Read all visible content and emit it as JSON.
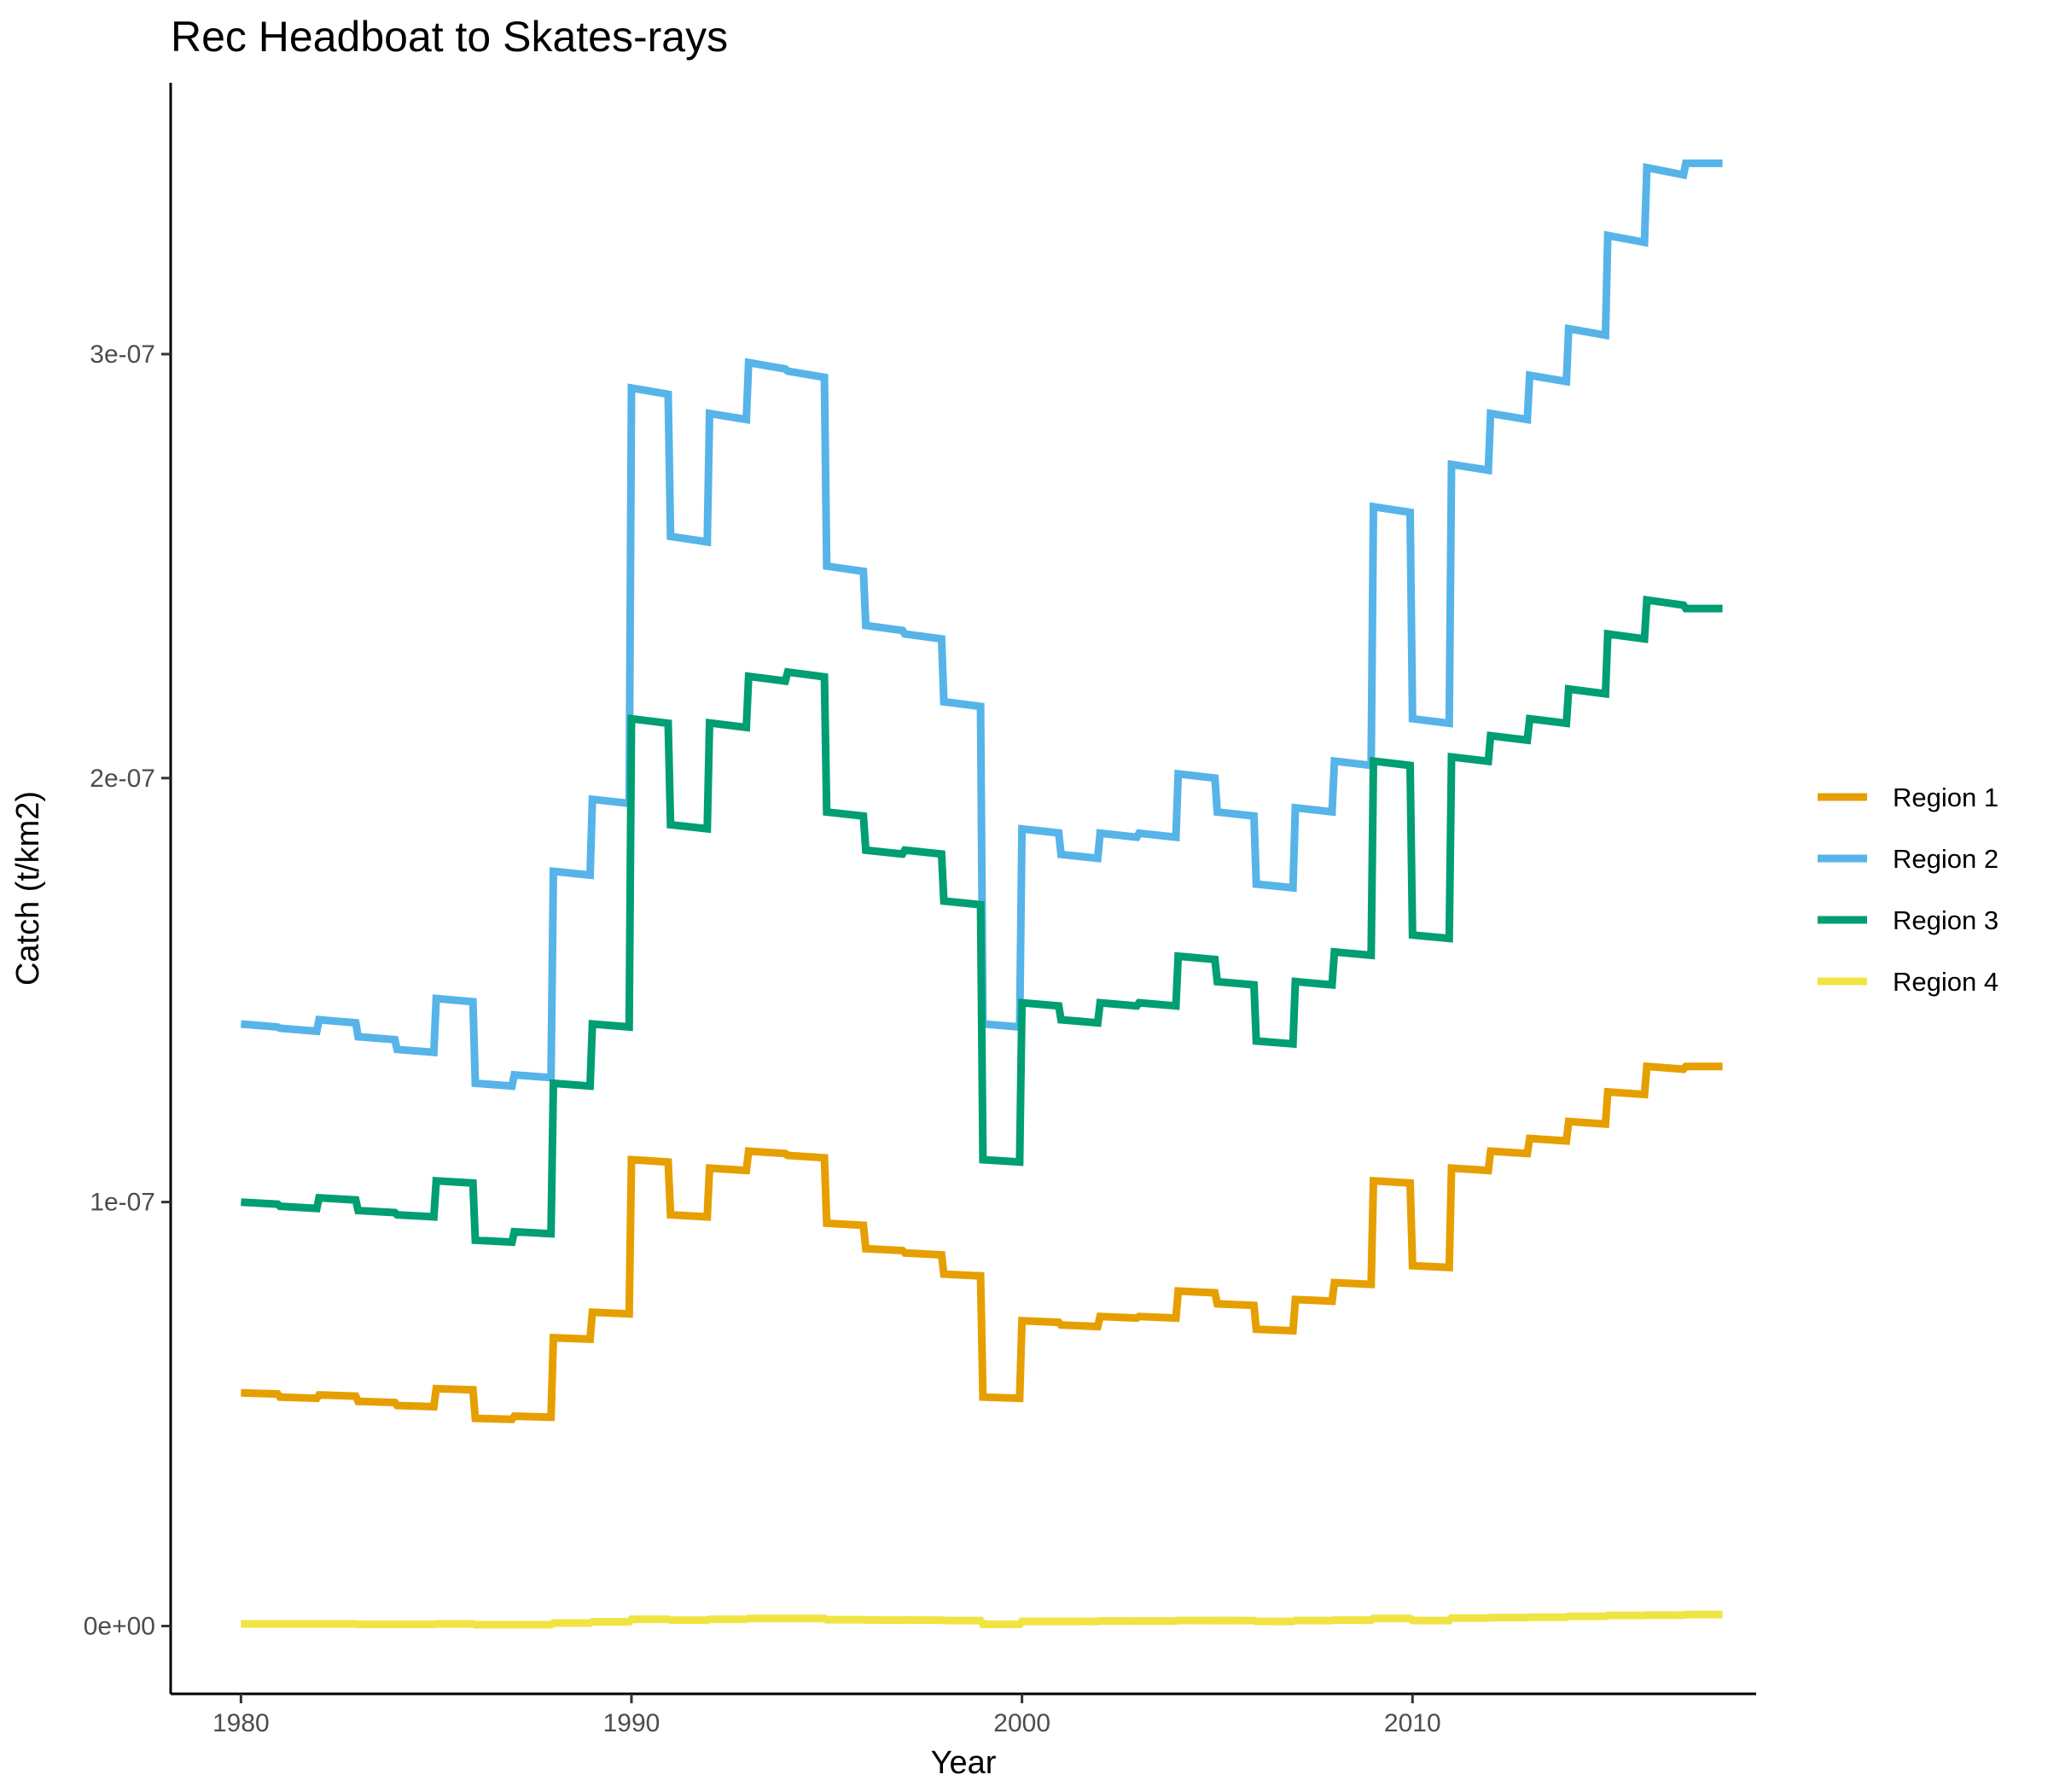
{
  "chart_data": {
    "type": "line",
    "title": "Rec Headboat to Skates-rays",
    "xlabel": "Year",
    "ylabel": "Catch (t/km2)",
    "xlim": [
      1978.2,
      2018.8
    ],
    "ylim": [
      -1.6e-08,
      3.64e-07
    ],
    "xticks": [
      1980,
      1990,
      2000,
      2010
    ],
    "xtick_labels": [
      "1980",
      "1990",
      "2000",
      "2010"
    ],
    "yticks": [
      0,
      1e-07,
      2e-07,
      3e-07
    ],
    "ytick_labels": [
      "0e+00",
      "1e-07",
      "2e-07",
      "3e-07"
    ],
    "grid": false,
    "legend_position": "right",
    "x": [
      1980.0,
      1981.0,
      1982.0,
      1983.0,
      1984.0,
      1985.0,
      1986.0,
      1987.0,
      1988.0,
      1989.0,
      1990.0,
      1991.0,
      1992.0,
      1993.0,
      1994.0,
      1995.0,
      1996.0,
      1997.0,
      1998.0,
      1999.0,
      2000.0,
      2001.0,
      2002.0,
      2003.0,
      2004.0,
      2005.0,
      2006.0,
      2007.0,
      2008.0,
      2009.0,
      2010.0,
      2011.0,
      2012.0,
      2013.0,
      2014.0,
      2015.0,
      2016.0,
      2017.0
    ],
    "series": [
      {
        "name": "Region 1",
        "color": "#E69F00",
        "values": [
          5.5e-08,
          5.4e-08,
          5.45e-08,
          5.3e-08,
          5.2e-08,
          5.6e-08,
          4.9e-08,
          4.95e-08,
          6.8e-08,
          7.4e-08,
          1.1e-07,
          9.7e-08,
          1.08e-07,
          1.12e-07,
          1.11e-07,
          9.5e-08,
          8.9e-08,
          8.8e-08,
          8.3e-08,
          5.4e-08,
          7.2e-08,
          7.1e-08,
          7.3e-08,
          7.3e-08,
          7.9e-08,
          7.6e-08,
          7e-08,
          7.7e-08,
          8.1e-08,
          1.05e-07,
          8.5e-08,
          1.08e-07,
          1.12e-07,
          1.15e-07,
          1.19e-07,
          1.26e-07,
          1.32e-07,
          1.32e-07
        ]
      },
      {
        "name": "Region 2",
        "color": "#56B4E9",
        "values": [
          1.42e-07,
          1.41e-07,
          1.43e-07,
          1.39e-07,
          1.36e-07,
          1.48e-07,
          1.28e-07,
          1.3e-07,
          1.78e-07,
          1.95e-07,
          2.92e-07,
          2.57e-07,
          2.86e-07,
          2.98e-07,
          2.96e-07,
          2.5e-07,
          2.36e-07,
          2.34e-07,
          2.18e-07,
          1.42e-07,
          1.88e-07,
          1.82e-07,
          1.87e-07,
          1.87e-07,
          2.01e-07,
          1.92e-07,
          1.75e-07,
          1.93e-07,
          2.04e-07,
          2.64e-07,
          2.14e-07,
          2.74e-07,
          2.86e-07,
          2.95e-07,
          3.06e-07,
          3.28e-07,
          3.44e-07,
          3.45e-07
        ]
      },
      {
        "name": "Region 3",
        "color": "#009E73",
        "values": [
          1e-07,
          9.9e-08,
          1.01e-07,
          9.8e-08,
          9.7e-08,
          1.05e-07,
          9.1e-08,
          9.3e-08,
          1.28e-07,
          1.42e-07,
          2.14e-07,
          1.89e-07,
          2.13e-07,
          2.24e-07,
          2.25e-07,
          1.92e-07,
          1.83e-07,
          1.83e-07,
          1.71e-07,
          1.1e-07,
          1.47e-07,
          1.43e-07,
          1.47e-07,
          1.47e-07,
          1.58e-07,
          1.52e-07,
          1.38e-07,
          1.52e-07,
          1.59e-07,
          2.04e-07,
          1.63e-07,
          2.05e-07,
          2.1e-07,
          2.14e-07,
          2.21e-07,
          2.34e-07,
          2.42e-07,
          2.4e-07
        ]
      },
      {
        "name": "Region 4",
        "color": "#F0E442",
        "values": [
          5e-10,
          5e-10,
          5e-10,
          4e-10,
          4e-10,
          5e-10,
          3e-10,
          3e-10,
          7e-10,
          1e-09,
          1.6e-09,
          1.4e-09,
          1.6e-09,
          1.8e-09,
          1.8e-09,
          1.5e-09,
          1.4e-09,
          1.4e-09,
          1.3e-09,
          4e-10,
          1.1e-09,
          1.1e-09,
          1.2e-09,
          1.2e-09,
          1.3e-09,
          1.3e-09,
          1.1e-09,
          1.3e-09,
          1.4e-09,
          1.8e-09,
          1.3e-09,
          1.9e-09,
          2e-09,
          2.1e-09,
          2.3e-09,
          2.5e-09,
          2.6e-09,
          2.7e-09
        ]
      }
    ]
  }
}
